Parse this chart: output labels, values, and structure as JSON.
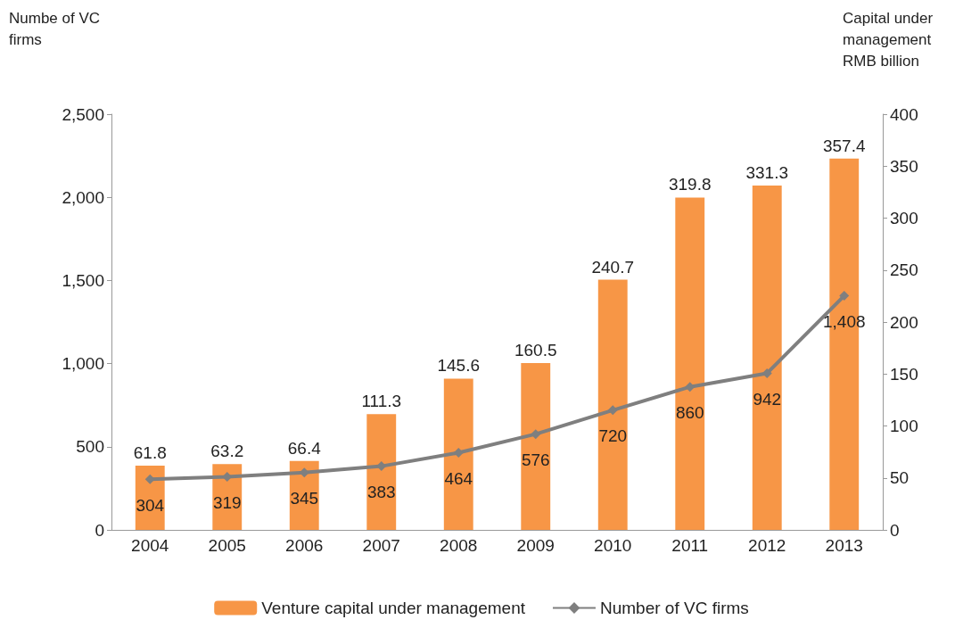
{
  "chart_data": {
    "type": "bar",
    "ylabel": "Numbe of VC firms",
    "y2label": "Capital under management RMB billion",
    "categories": [
      "2004",
      "2005",
      "2006",
      "2007",
      "2008",
      "2009",
      "2010",
      "2011",
      "2012",
      "2013"
    ],
    "series": [
      {
        "name": "Venture capital under management",
        "axis": "y2",
        "color": "#f79646",
        "values": [
          61.8,
          63.2,
          66.4,
          111.3,
          145.6,
          160.5,
          240.7,
          319.8,
          331.3,
          357.4
        ],
        "value_labels": [
          "61.8",
          "63.2",
          "66.4",
          "111.3",
          "145.6",
          "160.5",
          "240.7",
          "319.8",
          "331.3",
          "357.4"
        ]
      },
      {
        "name": "Number of VC firms",
        "type": "line",
        "axis": "y",
        "color": "#7f7f7f",
        "marker": "diamond",
        "values": [
          304,
          319,
          345,
          383,
          464,
          576,
          720,
          860,
          942,
          1408
        ],
        "value_labels": [
          "304",
          "319",
          "345",
          "383",
          "464",
          "576",
          "720",
          "860",
          "942",
          "1,408"
        ]
      }
    ],
    "ylim": [
      0,
      2500
    ],
    "yticks": [
      0,
      500,
      {
        "value": 1000,
        "label": "1,000"
      },
      {
        "value": 1500,
        "label": "1,500"
      },
      {
        "value": 2000,
        "label": "2,000"
      },
      {
        "value": 2500,
        "label": "2,500"
      }
    ],
    "y2lim": [
      0,
      400
    ],
    "y2ticks": [
      0,
      50,
      100,
      150,
      200,
      250,
      300,
      350,
      400
    ],
    "grid": false,
    "legend": "bottom"
  }
}
